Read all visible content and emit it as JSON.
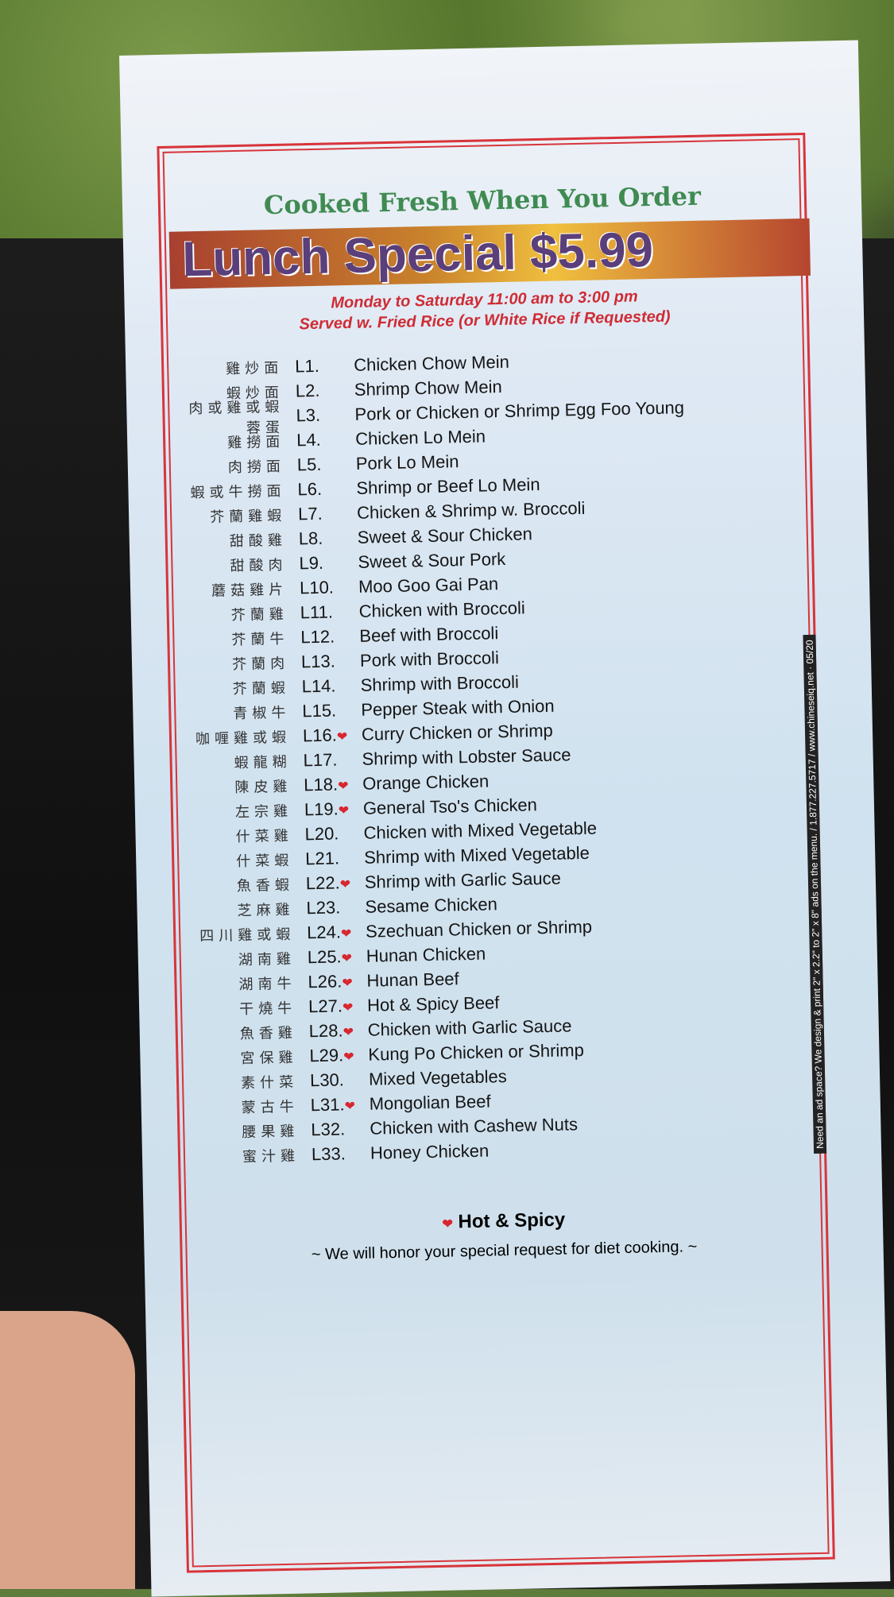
{
  "header": {
    "tagline": "Cooked Fresh When You Order",
    "title": "Lunch Special $5.99",
    "hours": "Monday to Saturday 11:00 am to 3:00 pm",
    "served": "Served w. Fried Rice (or White Rice if Requested)"
  },
  "items": [
    {
      "zh": "雞炒面",
      "code": "L1.",
      "name": "Chicken Chow Mein",
      "hot": false
    },
    {
      "zh": "蝦炒面",
      "code": "L2.",
      "name": "Shrimp Chow Mein",
      "hot": false
    },
    {
      "zh": "肉或雞或蝦蓉蛋",
      "code": "L3.",
      "name": "Pork or Chicken or Shrimp Egg Foo Young",
      "hot": false
    },
    {
      "zh": "雞撈面",
      "code": "L4.",
      "name": "Chicken Lo Mein",
      "hot": false
    },
    {
      "zh": "肉撈面",
      "code": "L5.",
      "name": "Pork Lo Mein",
      "hot": false
    },
    {
      "zh": "蝦或牛撈面",
      "code": "L6.",
      "name": "Shrimp or Beef Lo Mein",
      "hot": false
    },
    {
      "zh": "芥蘭雞蝦",
      "code": "L7.",
      "name": "Chicken & Shrimp w. Broccoli",
      "hot": false
    },
    {
      "zh": "甜酸雞",
      "code": "L8.",
      "name": "Sweet & Sour Chicken",
      "hot": false
    },
    {
      "zh": "甜酸肉",
      "code": "L9.",
      "name": "Sweet & Sour Pork",
      "hot": false
    },
    {
      "zh": "蘑菇雞片",
      "code": "L10.",
      "name": "Moo Goo Gai Pan",
      "hot": false
    },
    {
      "zh": "芥蘭雞",
      "code": "L11.",
      "name": "Chicken with Broccoli",
      "hot": false
    },
    {
      "zh": "芥蘭牛",
      "code": "L12.",
      "name": "Beef with Broccoli",
      "hot": false
    },
    {
      "zh": "芥蘭肉",
      "code": "L13.",
      "name": "Pork with Broccoli",
      "hot": false
    },
    {
      "zh": "芥蘭蝦",
      "code": "L14.",
      "name": "Shrimp with Broccoli",
      "hot": false
    },
    {
      "zh": "青椒牛",
      "code": "L15.",
      "name": "Pepper Steak with Onion",
      "hot": false
    },
    {
      "zh": "咖喱雞或蝦",
      "code": "L16.",
      "name": "Curry Chicken or Shrimp",
      "hot": true
    },
    {
      "zh": "蝦龍糊",
      "code": "L17.",
      "name": "Shrimp with Lobster Sauce",
      "hot": false
    },
    {
      "zh": "陳皮雞",
      "code": "L18.",
      "name": "Orange Chicken",
      "hot": true
    },
    {
      "zh": "左宗雞",
      "code": "L19.",
      "name": "General Tso's Chicken",
      "hot": true
    },
    {
      "zh": "什菜雞",
      "code": "L20.",
      "name": "Chicken with Mixed Vegetable",
      "hot": false
    },
    {
      "zh": "什菜蝦",
      "code": "L21.",
      "name": "Shrimp with Mixed Vegetable",
      "hot": false
    },
    {
      "zh": "魚香蝦",
      "code": "L22.",
      "name": "Shrimp with Garlic Sauce",
      "hot": true
    },
    {
      "zh": "芝麻雞",
      "code": "L23.",
      "name": "Sesame Chicken",
      "hot": false
    },
    {
      "zh": "四川雞或蝦",
      "code": "L24.",
      "name": "Szechuan Chicken or Shrimp",
      "hot": true
    },
    {
      "zh": "湖南雞",
      "code": "L25.",
      "name": "Hunan Chicken",
      "hot": true
    },
    {
      "zh": "湖南牛",
      "code": "L26.",
      "name": "Hunan Beef",
      "hot": true
    },
    {
      "zh": "干燒牛",
      "code": "L27.",
      "name": "Hot & Spicy Beef",
      "hot": true
    },
    {
      "zh": "魚香雞",
      "code": "L28.",
      "name": "Chicken with Garlic Sauce",
      "hot": true
    },
    {
      "zh": "宮保雞",
      "code": "L29.",
      "name": "Kung Po Chicken or Shrimp",
      "hot": true
    },
    {
      "zh": "素什菜",
      "code": "L30.",
      "name": "Mixed Vegetables",
      "hot": false
    },
    {
      "zh": "蒙古牛",
      "code": "L31.",
      "name": "Mongolian Beef",
      "hot": true
    },
    {
      "zh": "腰果雞",
      "code": "L32.",
      "name": "Chicken with Cashew Nuts",
      "hot": false
    },
    {
      "zh": "蜜汁雞",
      "code": "L33.",
      "name": "Honey Chicken",
      "hot": false
    }
  ],
  "footer": {
    "pepper_icon": "chili-pepper-icon",
    "legend": "Hot & Spicy",
    "note": "~ We will honor your special request for diet cooking. ~",
    "side_text": "Need an ad space? We design & print 2\" x 2.2\" to 2\" x 8\" ads on the menu. / 1.877.227.5717 / www.chineseiq.net · 05/20"
  },
  "colors": {
    "accent_red": "#d8343a",
    "tagline_green": "#3f8b52",
    "title_purple": "#5a3f7a"
  }
}
